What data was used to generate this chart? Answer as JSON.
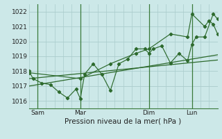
{
  "xlabel": "Pression niveau de la mer( hPa )",
  "bg_color": "#cce8e8",
  "grid_color": "#aacccc",
  "line_color": "#2d6a2d",
  "vline_color": "#3a7a3a",
  "ylim": [
    1015.5,
    1022.5
  ],
  "xlim": [
    0,
    22
  ],
  "xtick_positions": [
    1.0,
    6.0,
    14.0,
    19.0
  ],
  "xtick_labels": [
    "Sam",
    "Mar",
    "Dim",
    "Lun"
  ],
  "ytick_positions": [
    1016,
    1017,
    1018,
    1019,
    1020,
    1021,
    1022
  ],
  "vline_positions": [
    1.0,
    6.0,
    14.0,
    19.0
  ],
  "series_main_x": [
    0,
    0.5,
    1.5,
    2.5,
    3.5,
    4.5,
    5.5,
    6.0,
    6.5,
    7.5,
    8.5,
    9.5,
    10.5,
    11.5,
    12.5,
    13.5,
    14.0,
    14.5,
    15.5,
    16.5,
    17.5,
    18.5,
    19.0,
    19.5,
    20.5,
    21.5,
    22
  ],
  "series_main_y": [
    1018.0,
    1017.5,
    1017.2,
    1017.1,
    1016.6,
    1016.2,
    1016.8,
    1016.15,
    1017.8,
    1018.5,
    1017.8,
    1016.7,
    1018.5,
    1018.8,
    1019.5,
    1019.5,
    1019.2,
    1019.5,
    1019.7,
    1018.55,
    1019.2,
    1018.7,
    1019.8,
    1020.3,
    1020.3,
    1021.85,
    1021.5
  ],
  "series_upper_x": [
    0,
    6.0,
    9.5,
    12.5,
    14.0,
    16.5,
    18.5,
    19.0,
    20.5,
    21.0,
    21.5,
    22
  ],
  "series_upper_y": [
    1017.9,
    1017.5,
    1018.5,
    1019.2,
    1019.5,
    1020.5,
    1020.3,
    1021.85,
    1021.0,
    1021.4,
    1021.15,
    1020.5
  ],
  "series_trend1_x": [
    0,
    22
  ],
  "series_trend1_y": [
    1017.0,
    1019.1
  ],
  "series_trend2_x": [
    0,
    22
  ],
  "series_trend2_y": [
    1017.5,
    1018.75
  ]
}
